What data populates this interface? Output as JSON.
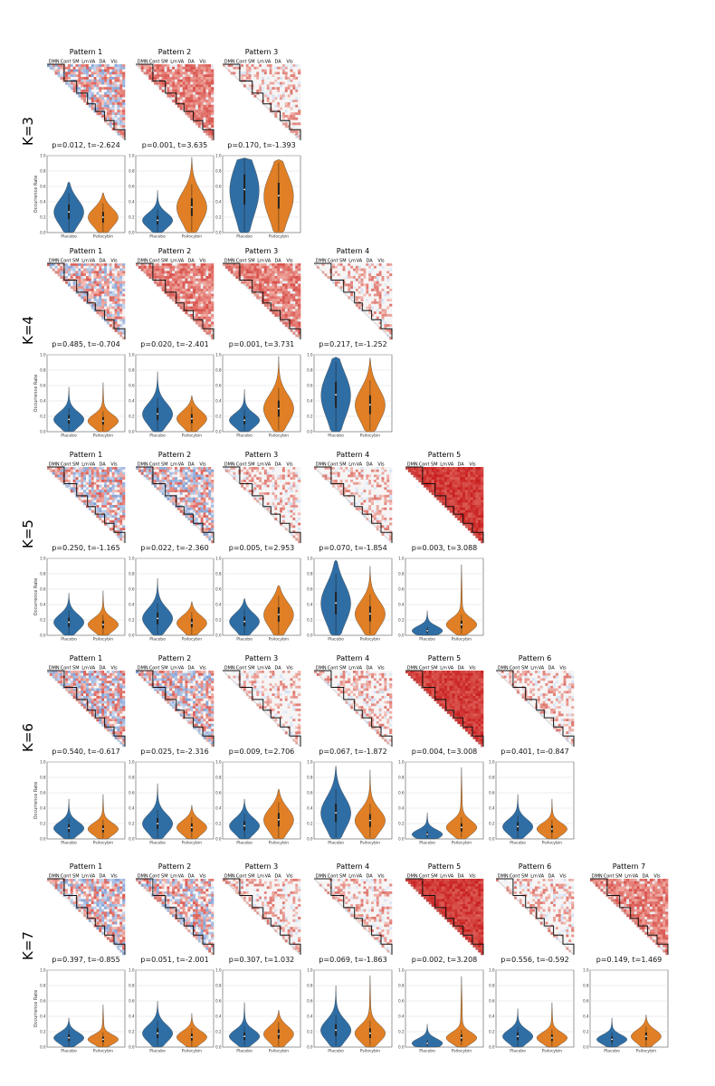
{
  "network_labels": [
    "DMN",
    "Cont",
    "SM",
    "Lm",
    "VA",
    "DA",
    "Vis"
  ],
  "colors": {
    "placebo": "#2f6ea5",
    "psilocybin": "#e07f25",
    "red": "#c0342c",
    "blue": "#4f8fcb",
    "grid": "#dddddd",
    "block_line": "#111111"
  },
  "chart_data": [
    {
      "type": "violin",
      "k_label": "K=3",
      "ylabel": "Occurrence Rate",
      "ylim": [
        0,
        1
      ],
      "yticks": [
        "0.0",
        "0.2",
        "0.4",
        "0.6",
        "0.8",
        "1.0"
      ],
      "categories": [
        "Placebo",
        "Psilocybin"
      ],
      "patterns": [
        {
          "title": "Pattern 1",
          "stat": "p=0.012, t=-2.624",
          "pattern_tone": "mixed",
          "placebo": {
            "median": 0.27,
            "max": 0.66
          },
          "psilocybin": {
            "median": 0.2,
            "max": 0.52
          }
        },
        {
          "title": "Pattern 2",
          "stat": "p=0.001, t=3.635",
          "pattern_tone": "red",
          "placebo": {
            "median": 0.16,
            "max": 0.55
          },
          "psilocybin": {
            "median": 0.33,
            "max": 0.98
          }
        },
        {
          "title": "Pattern 3",
          "stat": "p=0.170, t=-1.393",
          "pattern_tone": "light",
          "placebo": {
            "median": 0.56,
            "max": 0.97
          },
          "psilocybin": {
            "median": 0.48,
            "max": 0.95
          }
        }
      ]
    },
    {
      "type": "violin",
      "k_label": "K=4",
      "ylabel": "Occurrence Rate",
      "ylim": [
        0,
        1
      ],
      "yticks": [
        "0.0",
        "0.2",
        "0.4",
        "0.6",
        "0.8",
        "1.0"
      ],
      "categories": [
        "Placebo",
        "Psilocybin"
      ],
      "patterns": [
        {
          "title": "Pattern 1",
          "stat": "p=0.485, t=-0.704",
          "pattern_tone": "mixed",
          "placebo": {
            "median": 0.16,
            "max": 0.58
          },
          "psilocybin": {
            "median": 0.14,
            "max": 0.64
          }
        },
        {
          "title": "Pattern 2",
          "stat": "p=0.020, t=-2.401",
          "pattern_tone": "red",
          "placebo": {
            "median": 0.23,
            "max": 0.78
          },
          "psilocybin": {
            "median": 0.17,
            "max": 0.47
          }
        },
        {
          "title": "Pattern 3",
          "stat": "p=0.001, t=3.731",
          "pattern_tone": "red",
          "placebo": {
            "median": 0.15,
            "max": 0.55
          },
          "psilocybin": {
            "median": 0.3,
            "max": 0.98
          }
        },
        {
          "title": "Pattern 4",
          "stat": "p=0.217, t=-1.252",
          "pattern_tone": "light",
          "placebo": {
            "median": 0.48,
            "max": 0.97
          },
          "psilocybin": {
            "median": 0.35,
            "max": 0.96
          }
        }
      ]
    },
    {
      "type": "violin",
      "k_label": "K=5",
      "ylabel": "Occurrence Rate",
      "ylim": [
        0,
        1
      ],
      "yticks": [
        "0.0",
        "0.2",
        "0.4",
        "0.6",
        "0.8",
        "1.0"
      ],
      "categories": [
        "Placebo",
        "Psilocybin"
      ],
      "patterns": [
        {
          "title": "Pattern 1",
          "stat": "p=0.250, t=-1.165",
          "pattern_tone": "mixed",
          "placebo": {
            "median": 0.17,
            "max": 0.55
          },
          "psilocybin": {
            "median": 0.14,
            "max": 0.58
          }
        },
        {
          "title": "Pattern 2",
          "stat": "p=0.022, t=-2.360",
          "pattern_tone": "mixed",
          "placebo": {
            "median": 0.22,
            "max": 0.74
          },
          "psilocybin": {
            "median": 0.16,
            "max": 0.44
          }
        },
        {
          "title": "Pattern 3",
          "stat": "p=0.005, t=2.953",
          "pattern_tone": "light",
          "placebo": {
            "median": 0.18,
            "max": 0.48
          },
          "psilocybin": {
            "median": 0.27,
            "max": 0.65
          }
        },
        {
          "title": "Pattern 4",
          "stat": "p=0.070, t=-1.854",
          "pattern_tone": "light",
          "placebo": {
            "median": 0.42,
            "max": 0.98
          },
          "psilocybin": {
            "median": 0.28,
            "max": 0.9
          }
        },
        {
          "title": "Pattern 5",
          "stat": "p=0.003, t=3.088",
          "pattern_tone": "darkred",
          "placebo": {
            "median": 0.06,
            "max": 0.32
          },
          "psilocybin": {
            "median": 0.14,
            "max": 0.92
          }
        }
      ]
    },
    {
      "type": "violin",
      "k_label": "K=6",
      "ylabel": "Occurrence Rate",
      "ylim": [
        0,
        1
      ],
      "yticks": [
        "0.0",
        "0.2",
        "0.4",
        "0.6",
        "0.8",
        "1.0"
      ],
      "categories": [
        "Placebo",
        "Psilocybin"
      ],
      "patterns": [
        {
          "title": "Pattern 1",
          "stat": "p=0.540, t=-0.617",
          "pattern_tone": "mixed",
          "placebo": {
            "median": 0.14,
            "max": 0.52
          },
          "psilocybin": {
            "median": 0.13,
            "max": 0.58
          }
        },
        {
          "title": "Pattern 2",
          "stat": "p=0.025, t=-2.316",
          "pattern_tone": "mixed",
          "placebo": {
            "median": 0.2,
            "max": 0.72
          },
          "psilocybin": {
            "median": 0.15,
            "max": 0.44
          }
        },
        {
          "title": "Pattern 3",
          "stat": "p=0.009, t=2.706",
          "pattern_tone": "light",
          "placebo": {
            "median": 0.17,
            "max": 0.52
          },
          "psilocybin": {
            "median": 0.25,
            "max": 0.65
          }
        },
        {
          "title": "Pattern 4",
          "stat": "p=0.067, t=-1.872",
          "pattern_tone": "light",
          "placebo": {
            "median": 0.34,
            "max": 0.95
          },
          "psilocybin": {
            "median": 0.24,
            "max": 0.9
          }
        },
        {
          "title": "Pattern 5",
          "stat": "p=0.004, t=3.008",
          "pattern_tone": "darkred",
          "placebo": {
            "median": 0.06,
            "max": 0.34
          },
          "psilocybin": {
            "median": 0.15,
            "max": 0.93
          }
        },
        {
          "title": "Pattern 6",
          "stat": "p=0.401, t=-0.847",
          "pattern_tone": "light",
          "placebo": {
            "median": 0.16,
            "max": 0.58
          },
          "psilocybin": {
            "median": 0.13,
            "max": 0.52
          }
        }
      ]
    },
    {
      "type": "violin",
      "k_label": "K=7",
      "ylabel": "Occurrence Rate",
      "ylim": [
        0,
        1
      ],
      "yticks": [
        "0.0",
        "0.2",
        "0.4",
        "0.6",
        "0.8",
        "1.0"
      ],
      "categories": [
        "Placebo",
        "Psilocybin"
      ],
      "patterns": [
        {
          "title": "Pattern 1",
          "stat": "p=0.397, t=-0.855",
          "pattern_tone": "mixed",
          "placebo": {
            "median": 0.12,
            "max": 0.38
          },
          "psilocybin": {
            "median": 0.1,
            "max": 0.55
          }
        },
        {
          "title": "Pattern 2",
          "stat": "p=0.051, t=-2.001",
          "pattern_tone": "mixed",
          "placebo": {
            "median": 0.18,
            "max": 0.6
          },
          "psilocybin": {
            "median": 0.13,
            "max": 0.44
          }
        },
        {
          "title": "Pattern 3",
          "stat": "p=0.307, t=1.032",
          "pattern_tone": "light",
          "placebo": {
            "median": 0.14,
            "max": 0.58
          },
          "psilocybin": {
            "median": 0.17,
            "max": 0.48
          }
        },
        {
          "title": "Pattern 4",
          "stat": "p=0.069, t=-1.863",
          "pattern_tone": "light",
          "placebo": {
            "median": 0.22,
            "max": 0.8
          },
          "psilocybin": {
            "median": 0.18,
            "max": 0.93
          }
        },
        {
          "title": "Pattern 5",
          "stat": "p=0.002, t=3.208",
          "pattern_tone": "darkred",
          "placebo": {
            "median": 0.05,
            "max": 0.3
          },
          "psilocybin": {
            "median": 0.12,
            "max": 0.92
          }
        },
        {
          "title": "Pattern 6",
          "stat": "p=0.556, t=-0.592",
          "pattern_tone": "light",
          "placebo": {
            "median": 0.14,
            "max": 0.5
          },
          "psilocybin": {
            "median": 0.12,
            "max": 0.58
          }
        },
        {
          "title": "Pattern 7",
          "stat": "p=0.149, t=1.469",
          "pattern_tone": "red",
          "placebo": {
            "median": 0.1,
            "max": 0.38
          },
          "psilocybin": {
            "median": 0.14,
            "max": 0.42
          }
        }
      ]
    }
  ]
}
